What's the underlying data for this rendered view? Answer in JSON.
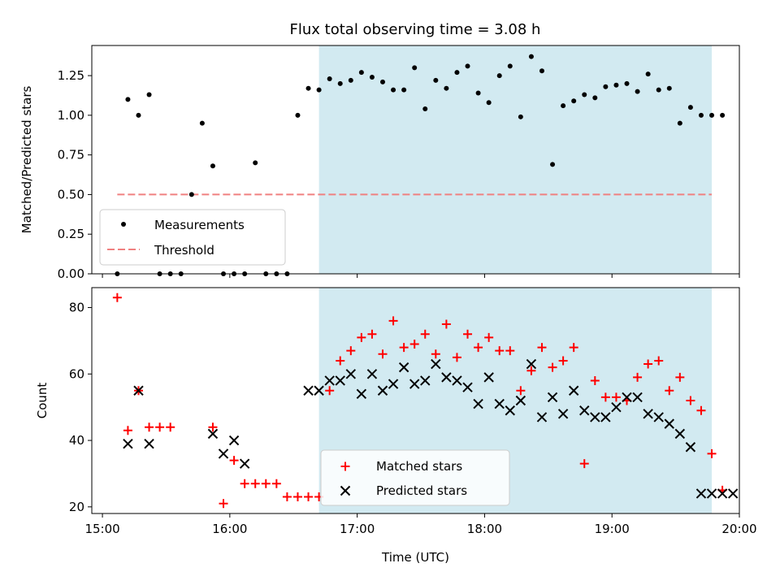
{
  "title": "Flux total observing time = 3.08 h",
  "colors": {
    "shade": "#add8e6",
    "measurement": "#000000",
    "threshold": "#f08080",
    "matched": "#ff0000",
    "predicted": "#000000"
  },
  "chart_data": [
    {
      "type": "scatter",
      "ylabel": "Matched/Predicted stars",
      "ylim": [
        0,
        1.44
      ],
      "yticks": [
        0.0,
        0.25,
        0.5,
        0.75,
        1.0,
        1.25
      ],
      "ytick_labels": [
        "0.00",
        "0.25",
        "0.50",
        "0.75",
        "1.00",
        "1.25"
      ],
      "shaded_span": [
        "16:42",
        "19:47"
      ],
      "legend": {
        "position": "lower-left",
        "entries": [
          "Measurements",
          "Threshold"
        ]
      },
      "threshold": {
        "name": "Threshold",
        "value": 0.5,
        "x_range": [
          "15:07",
          "19:47"
        ]
      },
      "series": [
        {
          "name": "Measurements",
          "x": [
            "15:07",
            "15:12",
            "15:17",
            "15:22",
            "15:27",
            "15:32",
            "15:37",
            "15:42",
            "15:47",
            "15:52",
            "15:57",
            "16:02",
            "16:07",
            "16:12",
            "16:17",
            "16:22",
            "16:27",
            "16:32",
            "16:37",
            "16:42",
            "16:47",
            "16:52",
            "16:57",
            "17:02",
            "17:07",
            "17:12",
            "17:17",
            "17:22",
            "17:27",
            "17:32",
            "17:37",
            "17:42",
            "17:47",
            "17:52",
            "17:57",
            "18:02",
            "18:07",
            "18:12",
            "18:17",
            "18:22",
            "18:27",
            "18:32",
            "18:37",
            "18:42",
            "18:47",
            "18:52",
            "18:57",
            "19:02",
            "19:07",
            "19:12",
            "19:17",
            "19:22",
            "19:27",
            "19:32",
            "19:37",
            "19:42",
            "19:47",
            "19:52"
          ],
          "y": [
            0.0,
            1.1,
            1.0,
            1.13,
            0.0,
            0.0,
            0.0,
            0.5,
            0.95,
            0.68,
            0.0,
            0.0,
            0.0,
            0.7,
            0.0,
            0.0,
            0.0,
            1.0,
            1.17,
            1.16,
            1.23,
            1.2,
            1.22,
            1.27,
            1.24,
            1.21,
            1.16,
            1.16,
            1.3,
            1.04,
            1.22,
            1.17,
            1.27,
            1.31,
            1.14,
            1.08,
            1.25,
            1.31,
            0.99,
            1.37,
            1.28,
            0.69,
            1.06,
            1.09,
            1.13,
            1.11,
            1.18,
            1.19,
            1.2,
            1.15,
            1.26,
            1.16,
            1.17,
            0.95,
            1.05,
            1.0,
            1.0,
            1.0
          ]
        }
      ]
    },
    {
      "type": "scatter",
      "xlabel": "Time (UTC)",
      "ylabel": "Count",
      "xlim": [
        "14:55",
        "20:00"
      ],
      "ylim": [
        18,
        86
      ],
      "yticks": [
        20,
        40,
        60,
        80
      ],
      "xticks": [
        "15:00",
        "16:00",
        "17:00",
        "18:00",
        "19:00",
        "20:00"
      ],
      "shaded_span": [
        "16:42",
        "19:47"
      ],
      "legend": {
        "position": "lower-center",
        "entries": [
          "Matched stars",
          "Predicted stars"
        ]
      },
      "series": [
        {
          "name": "Matched stars",
          "x": [
            "15:07",
            "15:12",
            "15:17",
            "15:22",
            "15:27",
            "15:32",
            "15:52",
            "15:57",
            "16:02",
            "16:07",
            "16:12",
            "16:17",
            "16:22",
            "16:27",
            "16:32",
            "16:37",
            "16:42",
            "16:47",
            "16:52",
            "16:57",
            "17:02",
            "17:07",
            "17:12",
            "17:17",
            "17:22",
            "17:27",
            "17:32",
            "17:37",
            "17:42",
            "17:47",
            "17:52",
            "17:57",
            "18:02",
            "18:07",
            "18:12",
            "18:17",
            "18:22",
            "18:27",
            "18:32",
            "18:37",
            "18:42",
            "18:47",
            "18:52",
            "18:57",
            "19:02",
            "19:07",
            "19:12",
            "19:17",
            "19:22",
            "19:27",
            "19:32",
            "19:37",
            "19:42",
            "19:47",
            "19:52"
          ],
          "y": [
            83,
            43,
            55,
            44,
            44,
            44,
            44,
            21,
            34,
            27,
            27,
            27,
            27,
            23,
            23,
            23,
            23,
            55,
            64,
            67,
            71,
            72,
            66,
            76,
            68,
            69,
            72,
            66,
            75,
            65,
            72,
            68,
            71,
            67,
            67,
            55,
            61,
            68,
            62,
            64,
            68,
            33,
            58,
            53,
            53,
            52,
            59,
            63,
            64,
            55,
            59,
            52,
            49,
            36,
            25
          ]
        },
        {
          "name": "Predicted stars",
          "x": [
            "15:12",
            "15:17",
            "15:22",
            "15:52",
            "15:57",
            "16:02",
            "16:07",
            "16:37",
            "16:42",
            "16:47",
            "16:52",
            "16:57",
            "17:02",
            "17:07",
            "17:12",
            "17:17",
            "17:22",
            "17:27",
            "17:32",
            "17:37",
            "17:42",
            "17:47",
            "17:52",
            "17:57",
            "18:02",
            "18:07",
            "18:12",
            "18:17",
            "18:22",
            "18:27",
            "18:32",
            "18:37",
            "18:42",
            "18:47",
            "18:52",
            "18:57",
            "19:02",
            "19:07",
            "19:12",
            "19:17",
            "19:22",
            "19:27",
            "19:32",
            "19:37",
            "19:42",
            "19:47",
            "19:52",
            "19:57"
          ],
          "y": [
            39,
            55,
            39,
            42,
            36,
            40,
            33,
            55,
            55,
            58,
            58,
            60,
            54,
            60,
            55,
            57,
            62,
            57,
            58,
            63,
            59,
            58,
            56,
            51,
            59,
            51,
            49,
            52,
            63,
            47,
            53,
            48,
            55,
            49,
            47,
            47,
            50,
            53,
            53,
            48,
            47,
            45,
            42,
            38,
            24,
            24,
            24,
            24
          ]
        }
      ]
    }
  ]
}
